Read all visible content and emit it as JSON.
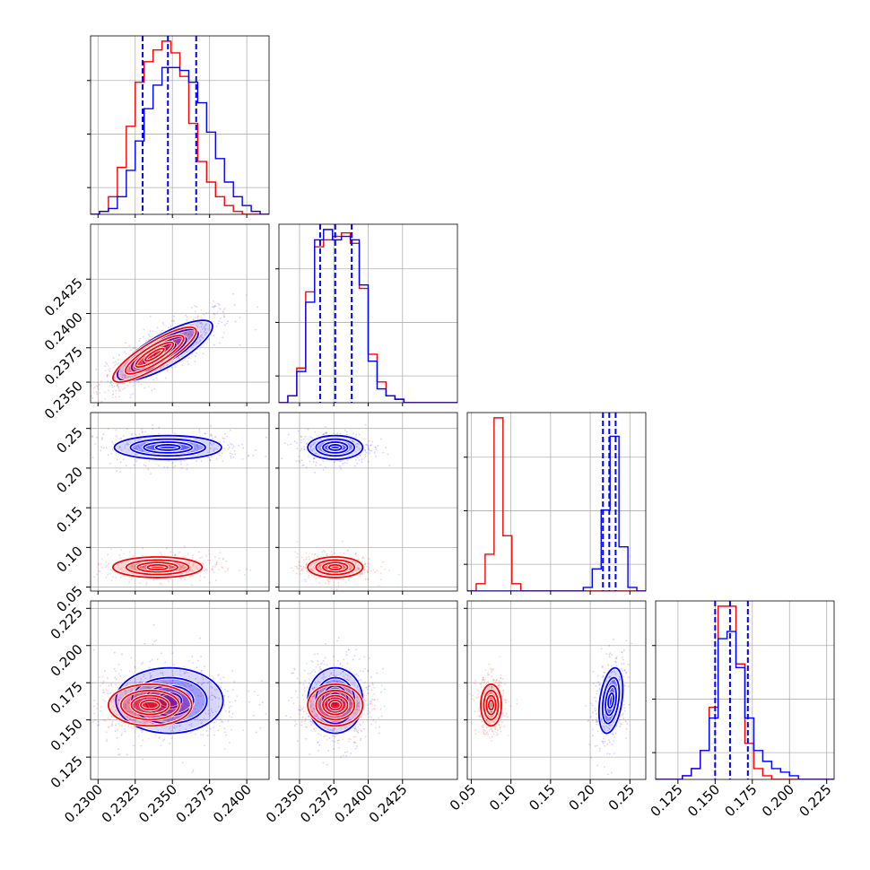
{
  "colors": {
    "series_a": "#ff0000",
    "series_b": "#0000ff",
    "grid": "#b0b0b0",
    "axes": "#000000"
  },
  "chart_data": {
    "type": "corner",
    "title": "",
    "n_params": 4,
    "grid": true,
    "series": [
      {
        "color": "red"
      },
      {
        "color": "blue"
      }
    ],
    "params": [
      {
        "range": [
          0.2295,
          0.2415
        ],
        "ticks": [
          "0.2300",
          "0.2325",
          "0.2350",
          "0.2375",
          "0.2400"
        ],
        "tick_values": [
          0.23,
          0.2325,
          0.235,
          0.2375,
          0.24
        ]
      },
      {
        "range": [
          0.2335,
          0.2465
        ],
        "ticks": [
          "0.2350",
          "0.2375",
          "0.2400",
          "0.2425"
        ],
        "tick_values": [
          0.235,
          0.2375,
          0.24,
          0.2425
        ]
      },
      {
        "range": [
          0.045,
          0.27
        ],
        "ticks": [
          "0.05",
          "0.10",
          "0.15",
          "0.20",
          "0.25"
        ],
        "tick_values": [
          0.05,
          0.1,
          0.15,
          0.2,
          0.25
        ]
      },
      {
        "range": [
          0.11,
          0.23
        ],
        "ticks": [
          "0.125",
          "0.150",
          "0.175",
          "0.200",
          "0.225"
        ],
        "tick_values": [
          0.125,
          0.15,
          0.175,
          0.2,
          0.225
        ]
      }
    ],
    "quantile_lines": [
      [
        0.233,
        0.2347,
        0.2366
      ],
      [
        0.2365,
        0.2376,
        0.2388
      ],
      [
        0.216,
        0.224,
        0.232
      ],
      [
        0.15,
        0.16,
        0.172
      ]
    ],
    "histograms": [
      {
        "edges_start": 0.2295,
        "bin_width": 0.0006,
        "red": [
          0,
          1,
          6,
          16,
          30,
          45,
          52,
          56,
          59,
          55,
          47,
          31,
          18,
          11,
          6,
          3,
          1,
          0,
          0,
          0
        ],
        "blue": [
          0,
          1,
          2,
          6,
          15,
          25,
          36,
          44,
          50,
          50,
          49,
          45,
          38,
          28,
          19,
          11,
          6,
          3,
          1,
          0
        ]
      },
      {
        "edges_start": 0.2335,
        "bin_width": 0.00065,
        "red": [
          0,
          2,
          10,
          32,
          45,
          47,
          48,
          49,
          46,
          33,
          14,
          6,
          2,
          1,
          0,
          0,
          0,
          0,
          0,
          0
        ],
        "blue": [
          0,
          2,
          9,
          29,
          47,
          50,
          47,
          48,
          47,
          34,
          12,
          4,
          2,
          1,
          0,
          0,
          0,
          0,
          0,
          0
        ]
      },
      {
        "edges_start": 0.045,
        "bin_width": 0.01125,
        "red": [
          0,
          2,
          10,
          47,
          15,
          2,
          0,
          0,
          0,
          0,
          0,
          0,
          0,
          0,
          0,
          0,
          0,
          0,
          0,
          0
        ],
        "blue": [
          0,
          0,
          0,
          0,
          0,
          0,
          0,
          0,
          0,
          0,
          0,
          0,
          0,
          1,
          6,
          22,
          42,
          12,
          1,
          0
        ]
      },
      {
        "edges_start": 0.11,
        "bin_width": 0.006,
        "red": [
          0,
          0,
          0,
          1,
          3,
          8,
          20,
          48,
          48,
          32,
          10,
          3,
          1,
          0,
          0,
          0,
          0,
          0,
          0,
          0
        ],
        "blue": [
          0,
          0,
          0,
          1,
          3,
          8,
          17,
          39,
          41,
          31,
          17,
          8,
          5,
          3,
          2,
          1,
          0,
          0,
          0,
          0
        ]
      }
    ],
    "joint": [
      {
        "row": 1,
        "col": 0,
        "red": {
          "mean": [
            0.2338,
            0.237
          ],
          "sd": [
            0.0014,
            0.001
          ],
          "rho": 0.85
        },
        "blue": {
          "mean": [
            0.2345,
            0.2373
          ],
          "sd": [
            0.0016,
            0.0011
          ],
          "rho": 0.8
        }
      },
      {
        "row": 2,
        "col": 0,
        "red": {
          "mean": [
            0.234,
            0.075
          ],
          "sd": [
            0.0015,
            0.0065
          ],
          "rho": 0.0
        },
        "blue": {
          "mean": [
            0.2347,
            0.226
          ],
          "sd": [
            0.0018,
            0.0075
          ],
          "rho": 0.0
        }
      },
      {
        "row": 2,
        "col": 1,
        "red": {
          "mean": [
            0.2376,
            0.075
          ],
          "sd": [
            0.001,
            0.0065
          ],
          "rho": 0.0
        },
        "blue": {
          "mean": [
            0.2376,
            0.226
          ],
          "sd": [
            0.001,
            0.0075
          ],
          "rho": 0.0
        }
      },
      {
        "row": 3,
        "col": 0,
        "red": {
          "mean": [
            0.2335,
            0.16
          ],
          "sd": [
            0.0014,
            0.007
          ],
          "rho": 0.0
        },
        "blue": {
          "mean": [
            0.2348,
            0.163
          ],
          "sd": [
            0.0018,
            0.011
          ],
          "rho": 0.0
        }
      },
      {
        "row": 3,
        "col": 1,
        "red": {
          "mean": [
            0.2376,
            0.16
          ],
          "sd": [
            0.001,
            0.007
          ],
          "rho": 0.0
        },
        "blue": {
          "mean": [
            0.2376,
            0.163
          ],
          "sd": [
            0.001,
            0.011
          ],
          "rho": 0.0
        }
      },
      {
        "row": 3,
        "col": 2,
        "red": {
          "mean": [
            0.075,
            0.16
          ],
          "sd": [
            0.0065,
            0.007
          ],
          "rho": 0.0
        },
        "blue": {
          "mean": [
            0.226,
            0.163
          ],
          "sd": [
            0.0075,
            0.011
          ],
          "rho": 0.35
        }
      }
    ]
  }
}
